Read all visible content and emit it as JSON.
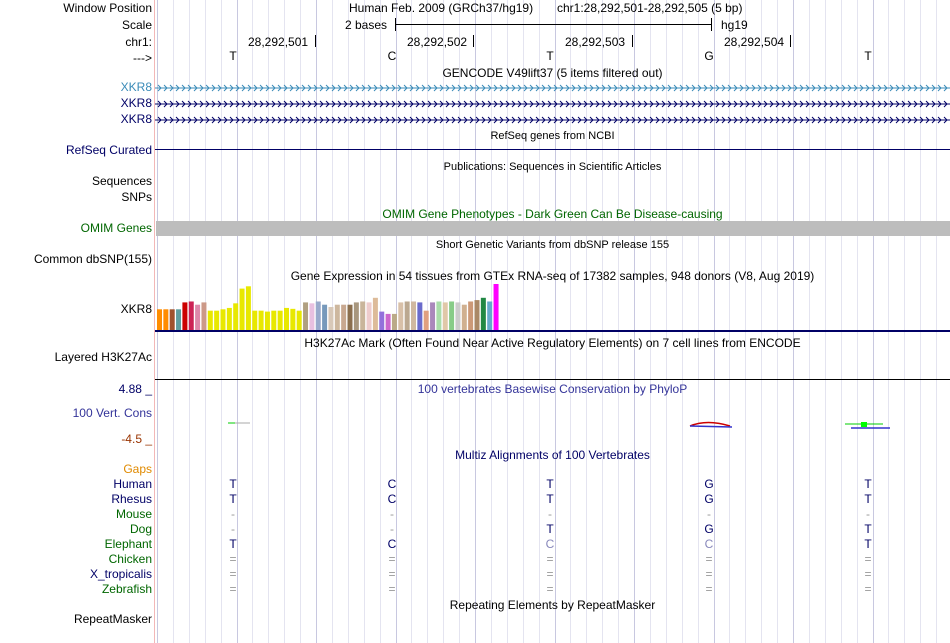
{
  "header": {
    "window_position_label": "Window Position",
    "assembly": "Human Feb. 2009 (GRCh37/hg19)",
    "position": "chr1:28,292,501-28,292,505 (5 bp)",
    "scale_label": "Scale",
    "scale_text": "2 bases",
    "scale_db": "hg19",
    "chrom_label": "chr1:",
    "coords": [
      "28,292,501",
      "28,292,502",
      "28,292,503",
      "28,292,504"
    ],
    "arrow_label": "--->",
    "bases": [
      "T",
      "C",
      "T",
      "G",
      "T"
    ]
  },
  "tracks": {
    "gencode": {
      "title": "GENCODE V49lift37 (5 items filtered out)",
      "genes": [
        "XKR8",
        "XKR8",
        "XKR8"
      ],
      "gene_colors": [
        "#3a8bb8",
        "#000066",
        "#000066"
      ]
    },
    "refseq": {
      "title": "RefSeq genes from NCBI",
      "label": "RefSeq Curated"
    },
    "pubs": {
      "title": "Publications: Sequences in Scientific Articles",
      "labels": [
        "Sequences",
        "SNPs"
      ]
    },
    "omim": {
      "title": "OMIM Gene Phenotypes - Dark Green Can Be Disease-causing",
      "label": "OMIM Genes"
    },
    "dbsnp": {
      "title": "Short Genetic Variants from dbSNP release 155",
      "label": "Common dbSNP(155)"
    },
    "gtex": {
      "title": "Gene Expression in 54 tissues from GTEx RNA-seq of 17382 samples, 948 donors (V8, Aug 2019)",
      "label": "XKR8",
      "values": [
        0.45,
        0.45,
        0.45,
        0.45,
        0.6,
        0.62,
        0.55,
        0.6,
        0.42,
        0.42,
        0.45,
        0.48,
        0.58,
        0.9,
        0.95,
        0.42,
        0.42,
        0.4,
        0.42,
        0.42,
        0.48,
        0.46,
        0.42,
        0.6,
        0.58,
        0.62,
        0.55,
        0.5,
        0.55,
        0.55,
        0.55,
        0.6,
        0.62,
        0.6,
        0.7,
        0.4,
        0.35,
        0.35,
        0.6,
        0.62,
        0.62,
        0.6,
        0.42,
        0.6,
        0.62,
        0.6,
        0.62,
        0.6,
        0.55,
        0.62,
        0.65,
        0.7,
        0.62,
        1.0
      ],
      "colors": [
        "#ff8c00",
        "#ff8c00",
        "#a0522d",
        "#5f9ea0",
        "#cc0000",
        "#cc2255",
        "#dd88aa",
        "#cc9988",
        "#e8e800",
        "#e8e800",
        "#e8e800",
        "#e8e800",
        "#e8e800",
        "#e8e800",
        "#e8e800",
        "#e8e800",
        "#e8e800",
        "#e8e800",
        "#e8e800",
        "#e8e800",
        "#e8e800",
        "#e8e800",
        "#e8e800",
        "#b0a080",
        "#e8c0e0",
        "#99aacc",
        "#7799bb",
        "#d8c8b8",
        "#cdb79e",
        "#c8a890",
        "#8b6f4e",
        "#a8977e",
        "#c9b59a",
        "#eecccc",
        "#ddbb99",
        "#9370db",
        "#cc66cc",
        "#bbaa88",
        "#d8c0a8",
        "#bba890",
        "#d0b8a0",
        "#6b6bcc",
        "#e0a080",
        "#aa88bb",
        "#aaddaa",
        "#e0c8a8",
        "#88cc88",
        "#cccccc",
        "#d0b090",
        "#cc9977",
        "#aa8866",
        "#228844",
        "#66aacc",
        "#ff00ff"
      ]
    },
    "h3k27ac": {
      "title": "H3K27Ac Mark (Often Found Near Active Regulatory Elements) on 7 cell lines from ENCODE",
      "label": "Layered H3K27Ac"
    },
    "cons": {
      "title": "100 vertebrates Basewise Conservation by PhyloP",
      "label": "100 Vert. Cons",
      "max": "4.88 _",
      "min": "-4.5 _"
    },
    "multiz": {
      "title": "Multiz Alignments of 100 Vertebrates",
      "gaps_label": "Gaps",
      "species": [
        {
          "name": "Human",
          "color": "#000066",
          "bases": [
            "T",
            "C",
            "T",
            "G",
            "T"
          ]
        },
        {
          "name": "Rhesus",
          "color": "#000066",
          "bases": [
            "T",
            "C",
            "T",
            "G",
            "T"
          ]
        },
        {
          "name": "Mouse",
          "color": "#006600",
          "bases": [
            "-",
            "-",
            "-",
            "-",
            "-"
          ]
        },
        {
          "name": "Dog",
          "color": "#006600",
          "bases": [
            "-",
            "-",
            "T",
            "G",
            "T"
          ]
        },
        {
          "name": "Elephant",
          "color": "#006600",
          "bases": [
            "T",
            "C",
            "C",
            "C",
            "T"
          ]
        },
        {
          "name": "Chicken",
          "color": "#006600",
          "bases": [
            "=",
            "=",
            "=",
            "=",
            "="
          ]
        },
        {
          "name": "X_tropicalis",
          "color": "#000066",
          "bases": [
            "=",
            "=",
            "=",
            "=",
            "="
          ]
        },
        {
          "name": "Zebrafish",
          "color": "#006600",
          "bases": [
            "=",
            "=",
            "=",
            "=",
            "="
          ]
        }
      ]
    },
    "rmsk": {
      "title": "Repeating Elements by RepeatMasker",
      "label": "RepeatMasker"
    }
  }
}
